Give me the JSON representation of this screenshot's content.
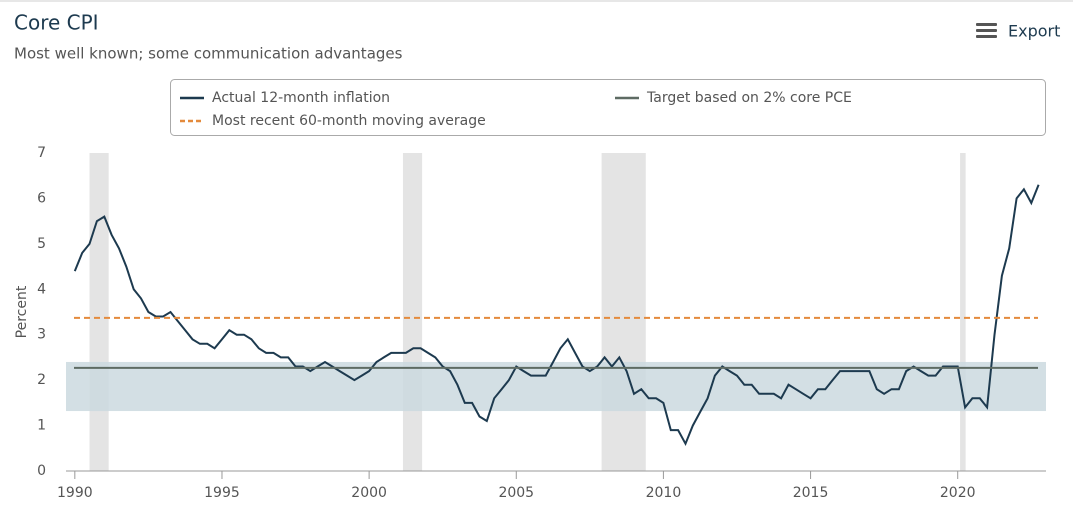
{
  "chart_data": {
    "type": "line",
    "title": "Core CPI",
    "subtitle": "Most well known; some communication advantages",
    "export_label": "Export",
    "y_label": "Percent",
    "xlim": [
      1989.7,
      2023
    ],
    "xticks": [
      1990,
      1995,
      2000,
      2005,
      2010,
      2015,
      2020
    ],
    "ylim": [
      0,
      7
    ],
    "yticks": [
      0,
      1,
      2,
      3,
      4,
      5,
      6,
      7
    ],
    "shaded_periods": [
      [
        1990.5,
        1991.15
      ],
      [
        2001.15,
        2001.8
      ],
      [
        2007.9,
        2009.4
      ],
      [
        2020.08,
        2020.27
      ]
    ],
    "shade_color": "#e4e4e4",
    "target_band": [
      1.32,
      2.4
    ],
    "target_band_color": "#cbd9df",
    "x": [
      1990,
      1990.25,
      1990.5,
      1990.75,
      1991,
      1991.25,
      1991.5,
      1991.75,
      1992,
      1992.25,
      1992.5,
      1992.75,
      1993,
      1993.25,
      1993.5,
      1993.75,
      1994,
      1994.25,
      1994.5,
      1994.75,
      1995,
      1995.25,
      1995.5,
      1995.75,
      1996,
      1996.25,
      1996.5,
      1996.75,
      1997,
      1997.25,
      1997.5,
      1997.75,
      1998,
      1998.25,
      1998.5,
      1998.75,
      1999,
      1999.25,
      1999.5,
      1999.75,
      2000,
      2000.25,
      2000.5,
      2000.75,
      2001,
      2001.25,
      2001.5,
      2001.75,
      2002,
      2002.25,
      2002.5,
      2002.75,
      2003,
      2003.25,
      2003.5,
      2003.75,
      2004,
      2004.25,
      2004.5,
      2004.75,
      2005,
      2005.25,
      2005.5,
      2005.75,
      2006,
      2006.25,
      2006.5,
      2006.75,
      2007,
      2007.25,
      2007.5,
      2007.75,
      2008,
      2008.25,
      2008.5,
      2008.75,
      2009,
      2009.25,
      2009.5,
      2009.75,
      2010,
      2010.25,
      2010.5,
      2010.75,
      2011,
      2011.25,
      2011.5,
      2011.75,
      2012,
      2012.25,
      2012.5,
      2012.75,
      2013,
      2013.25,
      2013.5,
      2013.75,
      2014,
      2014.25,
      2014.5,
      2014.75,
      2015,
      2015.25,
      2015.5,
      2015.75,
      2016,
      2016.25,
      2016.5,
      2016.75,
      2017,
      2017.25,
      2017.5,
      2017.75,
      2018,
      2018.25,
      2018.5,
      2018.75,
      2019,
      2019.25,
      2019.5,
      2019.75,
      2020,
      2020.25,
      2020.5,
      2020.75,
      2021,
      2021.25,
      2021.5,
      2021.75,
      2022,
      2022.25,
      2022.5,
      2022.75
    ],
    "series": [
      {
        "name": "Actual 12-month inflation",
        "color": "#1d3a4f",
        "values": [
          4.4,
          4.8,
          5.0,
          5.5,
          5.6,
          5.2,
          4.9,
          4.5,
          4.0,
          3.8,
          3.5,
          3.4,
          3.4,
          3.5,
          3.3,
          3.1,
          2.9,
          2.8,
          2.8,
          2.7,
          2.9,
          3.1,
          3.0,
          3.0,
          2.9,
          2.7,
          2.6,
          2.6,
          2.5,
          2.5,
          2.3,
          2.3,
          2.2,
          2.3,
          2.4,
          2.3,
          2.2,
          2.1,
          2.0,
          2.1,
          2.2,
          2.4,
          2.5,
          2.6,
          2.6,
          2.6,
          2.7,
          2.7,
          2.6,
          2.5,
          2.3,
          2.2,
          1.9,
          1.5,
          1.5,
          1.2,
          1.1,
          1.6,
          1.8,
          2.0,
          2.3,
          2.2,
          2.1,
          2.1,
          2.1,
          2.4,
          2.7,
          2.9,
          2.6,
          2.3,
          2.2,
          2.3,
          2.5,
          2.3,
          2.5,
          2.2,
          1.7,
          1.8,
          1.6,
          1.6,
          1.5,
          0.9,
          0.9,
          0.6,
          1.0,
          1.3,
          1.6,
          2.1,
          2.3,
          2.2,
          2.1,
          1.9,
          1.9,
          1.7,
          1.7,
          1.7,
          1.6,
          1.9,
          1.8,
          1.7,
          1.6,
          1.8,
          1.8,
          2.0,
          2.2,
          2.2,
          2.2,
          2.2,
          2.2,
          1.8,
          1.7,
          1.8,
          1.8,
          2.2,
          2.3,
          2.2,
          2.1,
          2.1,
          2.3,
          2.3,
          2.3,
          1.4,
          1.6,
          1.6,
          1.4,
          3.0,
          4.3,
          4.9,
          6.0,
          6.2,
          5.9,
          6.3
        ]
      },
      {
        "name": "Target based on 2% core PCE",
        "color": "#5e6b63",
        "value": 2.27
      },
      {
        "name": "Most recent 60-month moving average",
        "color": "#e48a3c",
        "value": 3.37,
        "dashed": true
      }
    ]
  }
}
